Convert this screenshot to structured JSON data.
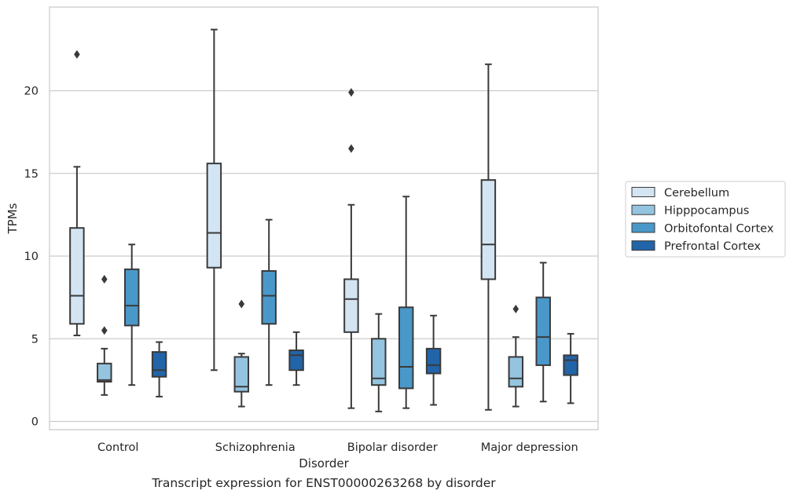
{
  "caption": "Transcript expression for ENST00000263268 by disorder",
  "chart_data": {
    "type": "boxplot",
    "xlabel": "Disorder",
    "ylabel": "TPMs",
    "ylim": [
      -0.4,
      24.6
    ],
    "yticks": [
      0,
      5,
      10,
      15,
      20
    ],
    "grid": "horizontal",
    "legend_position": "right",
    "categories": [
      "Control",
      "Schizophrenia",
      "Bipolar disorder",
      "Major depression"
    ],
    "series": [
      {
        "name": "Cerebellum",
        "color": "#d3e4f3",
        "boxes": [
          {
            "min": 5.2,
            "q1": 5.9,
            "median": 7.6,
            "q3": 11.7,
            "max": 15.4,
            "outliers": [
              22.2
            ]
          },
          {
            "min": 3.1,
            "q1": 9.3,
            "median": 11.4,
            "q3": 15.6,
            "max": 23.7,
            "outliers": []
          },
          {
            "min": 0.8,
            "q1": 5.4,
            "median": 7.4,
            "q3": 8.6,
            "max": 13.1,
            "outliers": [
              16.5,
              19.9
            ]
          },
          {
            "min": 0.7,
            "q1": 8.6,
            "median": 10.7,
            "q3": 14.6,
            "max": 21.6,
            "outliers": []
          }
        ]
      },
      {
        "name": "Hipppocampus",
        "color": "#94c4df",
        "boxes": [
          {
            "min": 1.6,
            "q1": 2.4,
            "median": 2.5,
            "q3": 3.5,
            "max": 4.4,
            "outliers": [
              8.6,
              5.5
            ]
          },
          {
            "min": 0.9,
            "q1": 1.8,
            "median": 2.1,
            "q3": 3.9,
            "max": 4.1,
            "outliers": [
              7.1
            ]
          },
          {
            "min": 0.6,
            "q1": 2.2,
            "median": 2.6,
            "q3": 5.0,
            "max": 6.5,
            "outliers": []
          },
          {
            "min": 0.9,
            "q1": 2.1,
            "median": 2.6,
            "q3": 3.9,
            "max": 5.1,
            "outliers": [
              6.8
            ]
          }
        ]
      },
      {
        "name": "Orbitofontal Cortex",
        "color": "#4a98c9",
        "boxes": [
          {
            "min": 2.2,
            "q1": 5.8,
            "median": 7.0,
            "q3": 9.2,
            "max": 10.7,
            "outliers": []
          },
          {
            "min": 2.2,
            "q1": 5.9,
            "median": 7.6,
            "q3": 9.1,
            "max": 12.2,
            "outliers": []
          },
          {
            "min": 0.8,
            "q1": 2.0,
            "median": 3.3,
            "q3": 6.9,
            "max": 13.6,
            "outliers": []
          },
          {
            "min": 1.2,
            "q1": 3.4,
            "median": 5.1,
            "q3": 7.5,
            "max": 9.6,
            "outliers": []
          }
        ]
      },
      {
        "name": "Prefrontal Cortex",
        "color": "#2264a8",
        "boxes": [
          {
            "min": 1.5,
            "q1": 2.7,
            "median": 3.1,
            "q3": 4.2,
            "max": 4.8,
            "outliers": []
          },
          {
            "min": 2.2,
            "q1": 3.1,
            "median": 4.0,
            "q3": 4.3,
            "max": 5.4,
            "outliers": []
          },
          {
            "min": 1.0,
            "q1": 2.9,
            "median": 3.4,
            "q3": 4.4,
            "max": 6.4,
            "outliers": []
          },
          {
            "min": 1.1,
            "q1": 2.8,
            "median": 3.7,
            "q3": 4.0,
            "max": 5.3,
            "outliers": []
          }
        ]
      }
    ]
  }
}
